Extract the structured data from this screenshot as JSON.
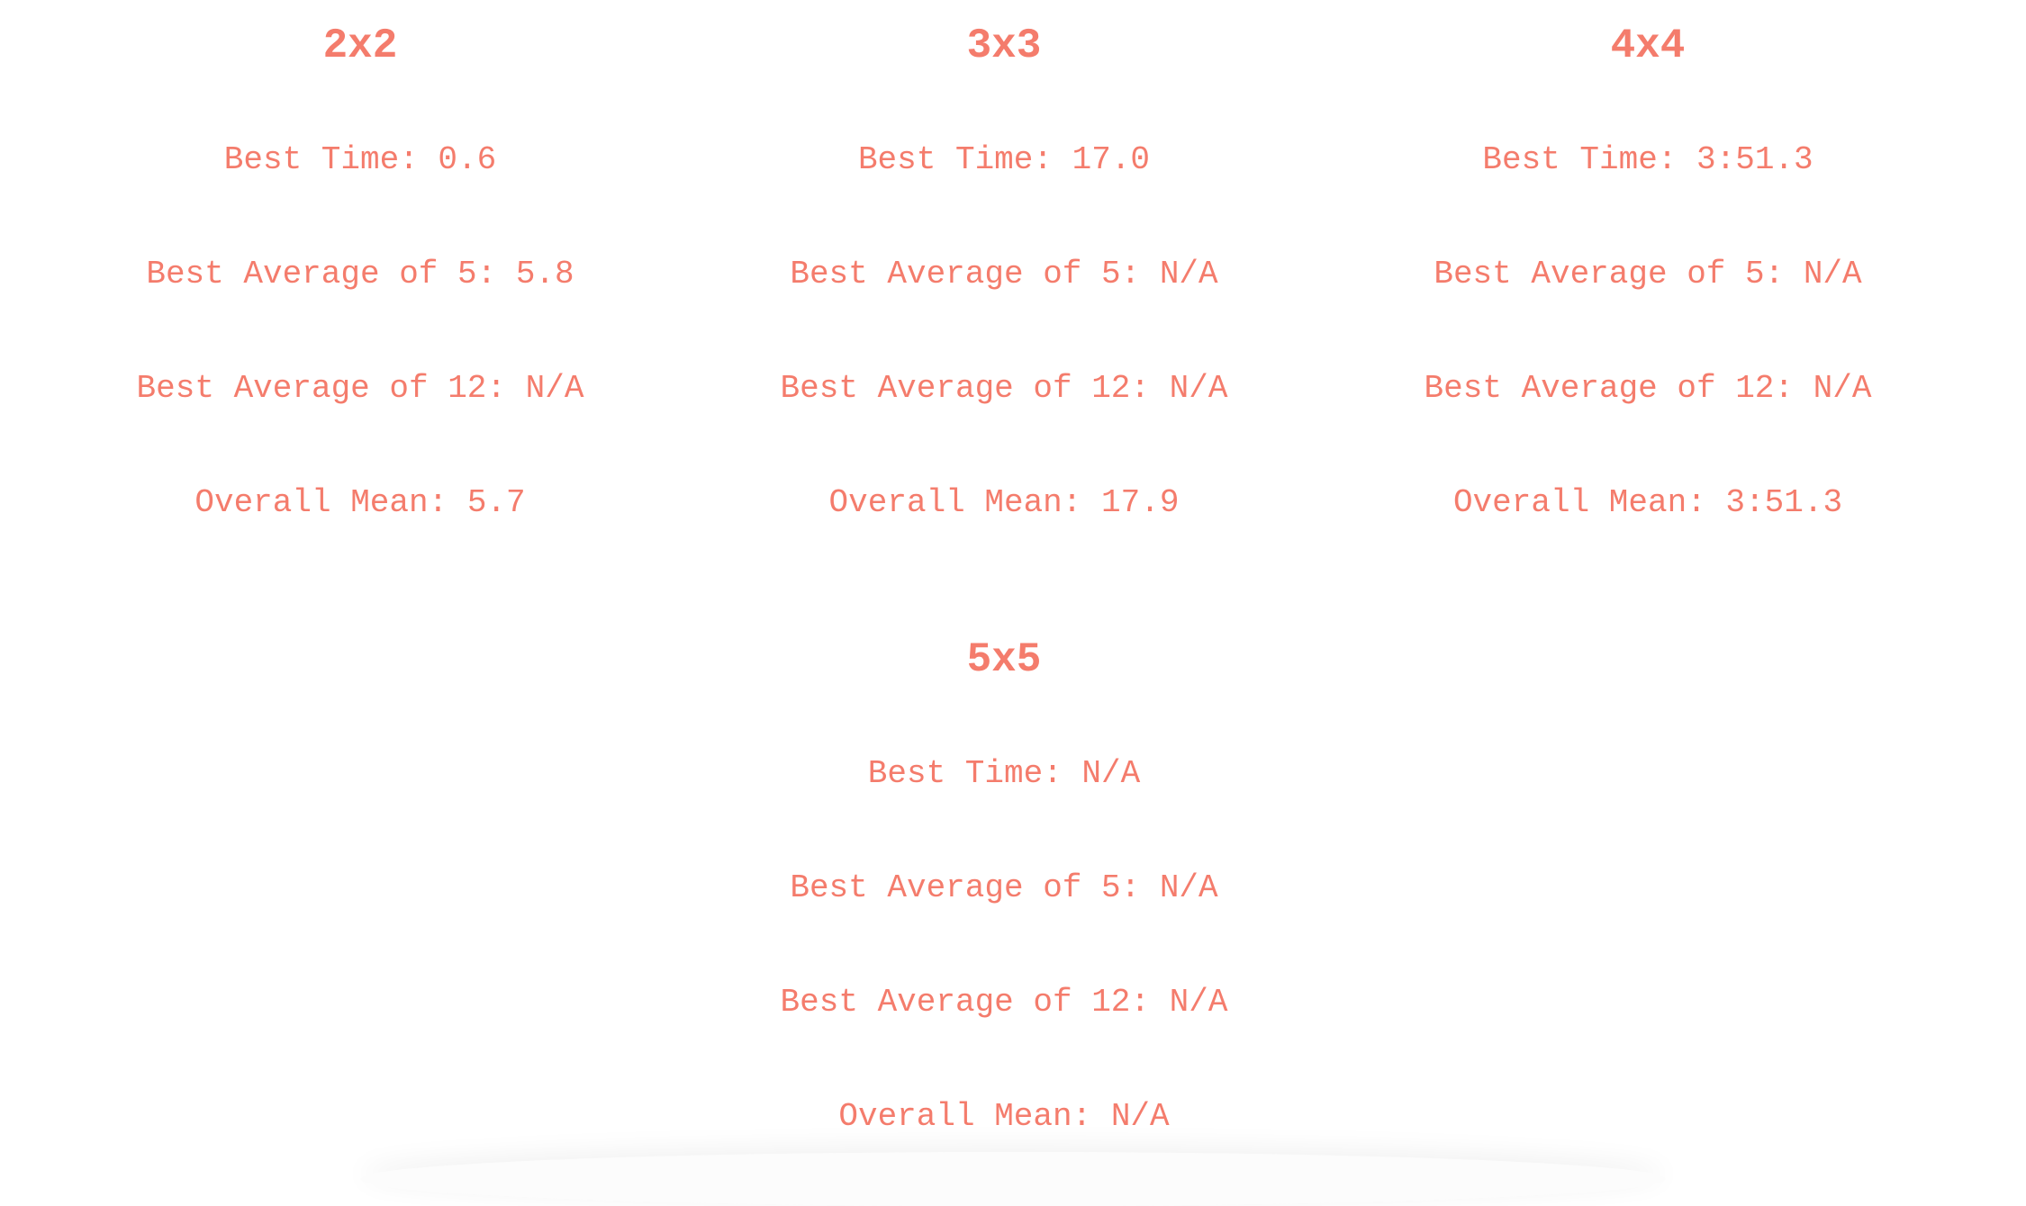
{
  "puzzles": [
    {
      "title": "2x2",
      "best_time_label": "Best Time:",
      "best_time": "0.6",
      "ao5_label": "Best Average of 5:",
      "ao5": "5.8",
      "ao12_label": "Best Average of 12:",
      "ao12": "N/A",
      "mean_label": "Overall Mean:",
      "mean": "5.7"
    },
    {
      "title": "3x3",
      "best_time_label": "Best Time:",
      "best_time": "17.0",
      "ao5_label": "Best Average of 5:",
      "ao5": "N/A",
      "ao12_label": "Best Average of 12:",
      "ao12": "N/A",
      "mean_label": "Overall Mean:",
      "mean": "17.9"
    },
    {
      "title": "4x4",
      "best_time_label": "Best Time:",
      "best_time": "3:51.3",
      "ao5_label": "Best Average of 5:",
      "ao5": "N/A",
      "ao12_label": "Best Average of 12:",
      "ao12": "N/A",
      "mean_label": "Overall Mean:",
      "mean": "3:51.3"
    },
    {
      "title": "5x5",
      "best_time_label": "Best Time:",
      "best_time": "N/A",
      "ao5_label": "Best Average of 5:",
      "ao5": "N/A",
      "ao12_label": "Best Average of 12:",
      "ao12": "N/A",
      "mean_label": "Overall Mean:",
      "mean": "N/A"
    }
  ],
  "colors": {
    "text": "#f47c6c",
    "background": "#ffffff"
  }
}
